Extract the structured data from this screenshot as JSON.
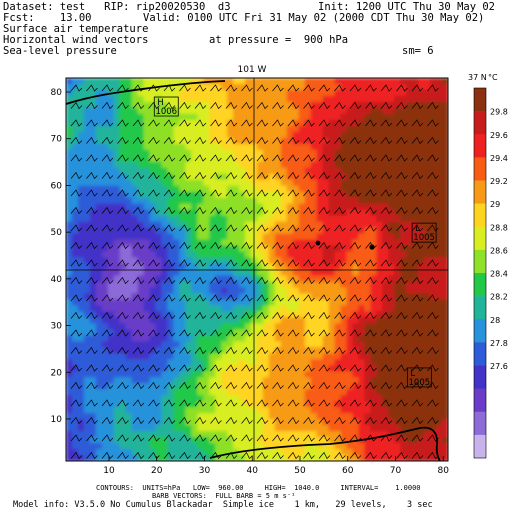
{
  "header": {
    "dataset_line": "Dataset: test   RIP: rip20020530  d3",
    "init_line": "Init: 1200 UTC Thu 30 May 02",
    "fcst_line": "Fcst:    13.00",
    "valid_line": "Valid: 0100 UTC Fri 31 May 02 (2000 CDT Thu 30 May 02)",
    "field1": "Surface air temperature",
    "field2": "Horizontal wind vectors",
    "field3": "Sea-level pressure",
    "pressure_line": "at pressure =  900 hPa",
    "sm_line": "sm= 6"
  },
  "map": {
    "top_label": "101 W",
    "right_label": "37 N",
    "units_label": "°C",
    "pressure_centers": [
      {
        "type": "H",
        "value": "1006",
        "gx": 22,
        "gy": 77
      },
      {
        "type": "L",
        "value": "1005",
        "gx": 76,
        "gy": 50
      },
      {
        "type": "L",
        "value": "1005",
        "gx": 75,
        "gy": 19
      }
    ]
  },
  "chart_data": {
    "type": "heatmap",
    "title": "",
    "x_ticks": [
      "10",
      "20",
      "30",
      "40",
      "50",
      "60",
      "70",
      "80"
    ],
    "y_ticks": [
      "10",
      "20",
      "30",
      "40",
      "50",
      "60",
      "70",
      "80"
    ],
    "xlim": [
      1,
      81
    ],
    "ylim": [
      1,
      83
    ],
    "colorbar": {
      "labels": [
        "29.8",
        "29.6",
        "29.4",
        "29.2",
        "29",
        "28.8",
        "28.6",
        "28.4",
        "28.2",
        "28",
        "27.8",
        "27.6"
      ],
      "colors": [
        "#8b3010",
        "#c81c1c",
        "#ee2020",
        "#f85c14",
        "#f79a18",
        "#ffd420",
        "#d8ee20",
        "#8ee028",
        "#22c848",
        "#22b49a",
        "#2892dc",
        "#2e5cd8",
        "#4232c8",
        "#6a3cc8",
        "#8c6ad8",
        "#c8b4ec"
      ]
    }
  },
  "footer": {
    "contours_line": "CONTOURS:  UNITS=hPa   LOW=  960.00     HIGH=  1040.0     INTERVAL=    1.0000",
    "barb_line": "BARB VECTORS:  FULL BARB = 5 m s⁻¹",
    "model_line": "Model info: V3.5.0 No Cumulus Blackadar  Simple ice    1 km,   29 levels,    3 sec"
  }
}
